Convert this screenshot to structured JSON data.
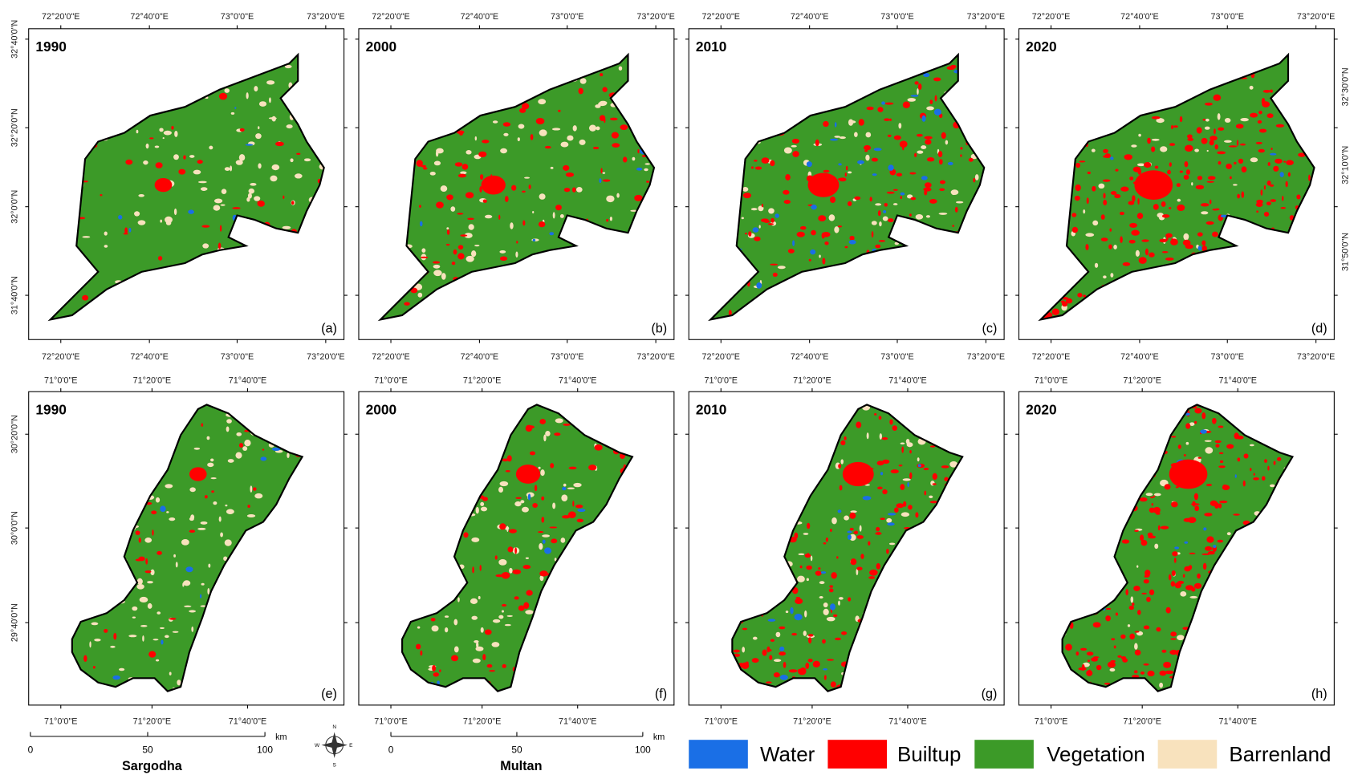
{
  "top_row": {
    "panels": [
      {
        "year": "1990",
        "letter": "(a)"
      },
      {
        "year": "2000",
        "letter": "(b)"
      },
      {
        "year": "2010",
        "letter": "(c)"
      },
      {
        "year": "2020",
        "letter": "(d)"
      }
    ],
    "lon_labels": [
      "72°20'0\"E",
      "72°40'0\"E",
      "73°0'0\"E",
      "73°20'0\"E"
    ],
    "lat_labels_left": [
      "32°40'0\"N",
      "32°20'0\"N",
      "32°0'0\"N",
      "31°40'0\"N"
    ],
    "lat_labels_right": [
      "32°30'0\"N",
      "32°10'0\"N",
      "31°50'0\"N"
    ]
  },
  "bottom_row": {
    "panels": [
      {
        "year": "1990",
        "letter": "(e)"
      },
      {
        "year": "2000",
        "letter": "(f)"
      },
      {
        "year": "2010",
        "letter": "(g)"
      },
      {
        "year": "2020",
        "letter": "(h)"
      }
    ],
    "lon_labels": [
      "71°0'0\"E",
      "71°20'0\"E",
      "71°40'0\"E"
    ],
    "lat_labels_left": [
      "30°20'0\"N",
      "30°0'0\"N",
      "29°40'0\"N"
    ]
  },
  "scale_bars": [
    {
      "name": "Sargodha",
      "ticks": [
        "0",
        "50",
        "100"
      ],
      "unit": "km"
    },
    {
      "name": "Multan",
      "ticks": [
        "0",
        "50",
        "100"
      ],
      "unit": "km"
    }
  ],
  "compass": [
    "N",
    "E",
    "S",
    "W"
  ],
  "legend": [
    {
      "label": "Water",
      "color": "#1a6fe6"
    },
    {
      "label": "Builtup",
      "color": "#ff0000"
    },
    {
      "label": "Vegetation",
      "color": "#3c9a28"
    },
    {
      "label": "Barrenland",
      "color": "#f8e2bd"
    }
  ]
}
